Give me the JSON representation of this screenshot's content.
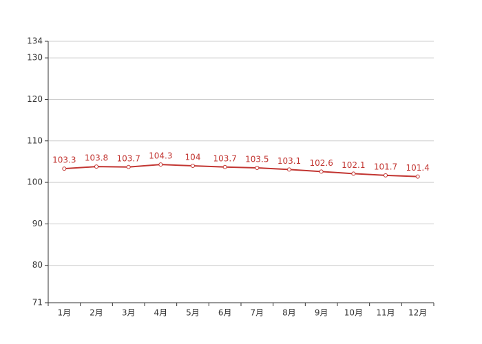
{
  "chart_data": {
    "type": "line",
    "categories": [
      "1月",
      "2月",
      "3月",
      "4月",
      "5月",
      "6月",
      "7月",
      "8月",
      "9月",
      "10月",
      "11月",
      "12月"
    ],
    "series": [
      {
        "color": "#c23531",
        "values": [
          103.3,
          103.8,
          103.7,
          104.3,
          104,
          103.7,
          103.5,
          103.1,
          102.6,
          102.1,
          101.7,
          101.4
        ]
      }
    ],
    "ylim": [
      71,
      134
    ],
    "yticks": [
      71,
      80,
      90,
      100,
      110,
      120,
      130,
      134
    ],
    "grid": true
  }
}
